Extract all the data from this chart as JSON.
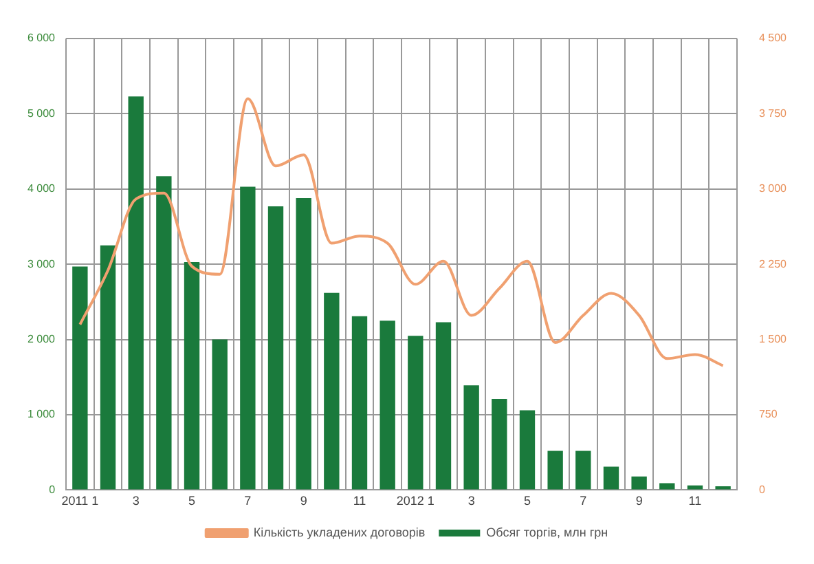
{
  "chart_data": {
    "type": "bar",
    "categories": [
      "2011 1",
      null,
      "3",
      null,
      "5",
      null,
      "7",
      null,
      "9",
      null,
      "11",
      null,
      "2012 1",
      null,
      "3",
      null,
      "5",
      null,
      "7",
      null,
      "9",
      null,
      "11",
      null
    ],
    "series": [
      {
        "name": "Обсяг торгів, млн грн",
        "color": "#1a7a3c",
        "values": [
          2970,
          3250,
          5230,
          4170,
          3030,
          2000,
          4030,
          3770,
          3880,
          2620,
          2310,
          2250,
          2050,
          2230,
          1390,
          1210,
          1060,
          520,
          520,
          310,
          180,
          90,
          60,
          50
        ]
      },
      {
        "name": "Кількість укладених договорів",
        "type": "line",
        "axis": "y2",
        "color": "#f0a070",
        "values": [
          1650,
          2190,
          2900,
          2960,
          2230,
          2150,
          3900,
          3230,
          3340,
          2460,
          2530,
          2460,
          2050,
          2280,
          1740,
          2010,
          2280,
          1470,
          1740,
          1960,
          1740,
          1310,
          1350,
          1240
        ]
      }
    ],
    "ylim": [
      0,
      6000
    ],
    "yticks": [
      {
        "value": 0,
        "label": "0"
      },
      {
        "value": 1000,
        "label": "1 000"
      },
      {
        "value": 2000,
        "label": "2 000"
      },
      {
        "value": 3000,
        "label": "3 000"
      },
      {
        "value": 4000,
        "label": "4 000"
      },
      {
        "value": 5000,
        "label": "5 000"
      },
      {
        "value": 6000,
        "label": "6 000"
      }
    ],
    "y2lim": [
      0,
      4500
    ],
    "y2ticks": [
      {
        "value": 0,
        "label": "0"
      },
      {
        "value": 750,
        "label": "750"
      },
      {
        "value": 1500,
        "label": "1 500"
      },
      {
        "value": 2250,
        "label": "2 250"
      },
      {
        "value": 3000,
        "label": "3 000"
      },
      {
        "value": 3750,
        "label": "3 750"
      },
      {
        "value": 4500,
        "label": "4 500"
      }
    ],
    "grid": true,
    "legend": "bottom",
    "marker": "none",
    "line_style": "solid"
  }
}
